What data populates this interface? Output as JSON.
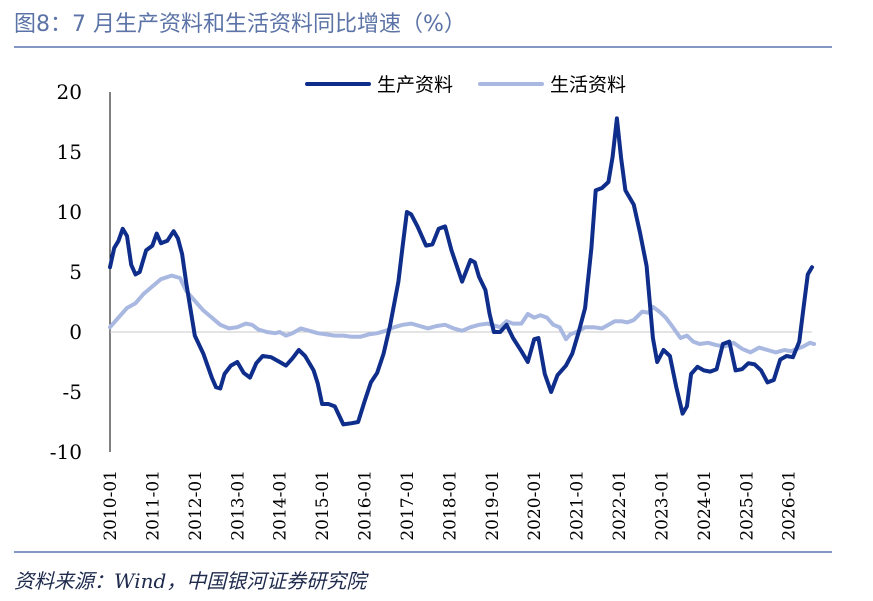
{
  "title": "图8：7 月生产资料和生活资料同比增速（%）",
  "source": "资料来源：Wind，中国银河证券研究院",
  "chart_data": {
    "type": "line",
    "title": "图8：7 月生产资料和生活资料同比增速（%）",
    "xlabel": "",
    "ylabel": "",
    "ylim": [
      -10,
      20
    ],
    "yticks": [
      20,
      15,
      10,
      5,
      0,
      -5,
      -10
    ],
    "xtick_labels": [
      "2010-01",
      "2011-01",
      "2012-01",
      "2013-01",
      "2014-01",
      "2015-01",
      "2016-01",
      "2017-01",
      "2018-01",
      "2019-01",
      "2020-01",
      "2021-01",
      "2022-01",
      "2023-01",
      "2024-01",
      "2025-01",
      "2026-01"
    ],
    "grid": false,
    "legend_position": "top",
    "series": [
      {
        "name": "生产资料",
        "color": "#0f2d8a",
        "points": [
          [
            2010.0,
            5.4
          ],
          [
            2010.1,
            7.0
          ],
          [
            2010.2,
            7.6
          ],
          [
            2010.3,
            8.6
          ],
          [
            2010.4,
            8.0
          ],
          [
            2010.5,
            5.6
          ],
          [
            2010.6,
            4.8
          ],
          [
            2010.7,
            5.0
          ],
          [
            2010.85,
            6.8
          ],
          [
            2011.0,
            7.2
          ],
          [
            2011.1,
            8.2
          ],
          [
            2011.2,
            7.4
          ],
          [
            2011.35,
            7.6
          ],
          [
            2011.5,
            8.4
          ],
          [
            2011.6,
            7.8
          ],
          [
            2011.7,
            6.5
          ],
          [
            2011.8,
            4.0
          ],
          [
            2012.0,
            -0.3
          ],
          [
            2012.2,
            -1.8
          ],
          [
            2012.4,
            -3.8
          ],
          [
            2012.5,
            -4.6
          ],
          [
            2012.6,
            -4.7
          ],
          [
            2012.7,
            -3.5
          ],
          [
            2012.85,
            -2.8
          ],
          [
            2013.0,
            -2.5
          ],
          [
            2013.15,
            -3.4
          ],
          [
            2013.3,
            -3.8
          ],
          [
            2013.45,
            -2.6
          ],
          [
            2013.6,
            -2.0
          ],
          [
            2013.8,
            -2.1
          ],
          [
            2014.0,
            -2.5
          ],
          [
            2014.15,
            -2.8
          ],
          [
            2014.3,
            -2.2
          ],
          [
            2014.45,
            -1.5
          ],
          [
            2014.6,
            -2.0
          ],
          [
            2014.8,
            -3.2
          ],
          [
            2014.9,
            -4.3
          ],
          [
            2015.0,
            -6.0
          ],
          [
            2015.15,
            -6.0
          ],
          [
            2015.3,
            -6.2
          ],
          [
            2015.5,
            -7.7
          ],
          [
            2015.7,
            -7.6
          ],
          [
            2015.85,
            -7.5
          ],
          [
            2016.0,
            -5.8
          ],
          [
            2016.15,
            -4.2
          ],
          [
            2016.3,
            -3.4
          ],
          [
            2016.45,
            -1.8
          ],
          [
            2016.6,
            0.5
          ],
          [
            2016.8,
            4.2
          ],
          [
            2016.9,
            7.2
          ],
          [
            2017.0,
            10.0
          ],
          [
            2017.1,
            9.8
          ],
          [
            2017.25,
            8.8
          ],
          [
            2017.45,
            7.2
          ],
          [
            2017.6,
            7.3
          ],
          [
            2017.75,
            8.6
          ],
          [
            2017.9,
            8.8
          ],
          [
            2018.05,
            6.8
          ],
          [
            2018.3,
            4.2
          ],
          [
            2018.5,
            6.0
          ],
          [
            2018.6,
            5.8
          ],
          [
            2018.7,
            4.6
          ],
          [
            2018.85,
            3.5
          ],
          [
            2018.95,
            1.5
          ],
          [
            2019.05,
            0.0
          ],
          [
            2019.2,
            0.0
          ],
          [
            2019.35,
            0.6
          ],
          [
            2019.5,
            -0.5
          ],
          [
            2019.7,
            -1.6
          ],
          [
            2019.85,
            -2.5
          ],
          [
            2020.0,
            -0.6
          ],
          [
            2020.1,
            -0.5
          ],
          [
            2020.25,
            -3.5
          ],
          [
            2020.4,
            -5.0
          ],
          [
            2020.55,
            -3.6
          ],
          [
            2020.75,
            -2.8
          ],
          [
            2020.9,
            -1.8
          ],
          [
            2021.05,
            0.0
          ],
          [
            2021.2,
            2.0
          ],
          [
            2021.35,
            7.0
          ],
          [
            2021.45,
            11.8
          ],
          [
            2021.6,
            12.0
          ],
          [
            2021.75,
            12.5
          ],
          [
            2021.85,
            14.6
          ],
          [
            2021.95,
            17.8
          ],
          [
            2022.05,
            14.5
          ],
          [
            2022.15,
            11.8
          ],
          [
            2022.35,
            10.6
          ],
          [
            2022.5,
            8.2
          ],
          [
            2022.65,
            5.5
          ],
          [
            2022.8,
            -0.5
          ],
          [
            2022.9,
            -2.5
          ],
          [
            2023.05,
            -1.5
          ],
          [
            2023.2,
            -2.0
          ],
          [
            2023.35,
            -4.6
          ],
          [
            2023.5,
            -6.8
          ],
          [
            2023.6,
            -6.2
          ],
          [
            2023.7,
            -3.5
          ],
          [
            2023.85,
            -2.9
          ],
          [
            2024.0,
            -3.2
          ],
          [
            2024.15,
            -3.3
          ],
          [
            2024.3,
            -3.1
          ],
          [
            2024.45,
            -1.0
          ],
          [
            2024.6,
            -0.8
          ],
          [
            2024.75,
            -3.2
          ],
          [
            2024.9,
            -3.1
          ],
          [
            2025.05,
            -2.6
          ],
          [
            2025.2,
            -2.7
          ],
          [
            2025.35,
            -3.2
          ],
          [
            2025.5,
            -4.2
          ],
          [
            2025.65,
            -4.0
          ],
          [
            2025.8,
            -2.3
          ],
          [
            2025.95,
            -2.0
          ],
          [
            2026.1,
            -2.1
          ],
          [
            2026.25,
            -0.8
          ],
          [
            2026.35,
            2.0
          ],
          [
            2026.45,
            4.8
          ],
          [
            2026.55,
            5.4
          ]
        ]
      },
      {
        "name": "生活资料",
        "color": "#a9b8e0",
        "points": [
          [
            2010.0,
            0.4
          ],
          [
            2010.2,
            1.2
          ],
          [
            2010.4,
            2.0
          ],
          [
            2010.6,
            2.4
          ],
          [
            2010.8,
            3.2
          ],
          [
            2011.0,
            3.8
          ],
          [
            2011.2,
            4.4
          ],
          [
            2011.45,
            4.7
          ],
          [
            2011.65,
            4.5
          ],
          [
            2011.8,
            3.4
          ],
          [
            2012.0,
            2.6
          ],
          [
            2012.2,
            1.8
          ],
          [
            2012.4,
            1.2
          ],
          [
            2012.6,
            0.6
          ],
          [
            2012.8,
            0.3
          ],
          [
            2013.0,
            0.4
          ],
          [
            2013.2,
            0.7
          ],
          [
            2013.35,
            0.6
          ],
          [
            2013.5,
            0.2
          ],
          [
            2013.7,
            0.0
          ],
          [
            2013.9,
            -0.1
          ],
          [
            2014.0,
            0.0
          ],
          [
            2014.15,
            -0.3
          ],
          [
            2014.3,
            -0.1
          ],
          [
            2014.5,
            0.3
          ],
          [
            2014.7,
            0.1
          ],
          [
            2014.9,
            -0.1
          ],
          [
            2015.1,
            -0.2
          ],
          [
            2015.3,
            -0.3
          ],
          [
            2015.5,
            -0.3
          ],
          [
            2015.7,
            -0.4
          ],
          [
            2015.9,
            -0.4
          ],
          [
            2016.1,
            -0.2
          ],
          [
            2016.3,
            -0.1
          ],
          [
            2016.5,
            0.1
          ],
          [
            2016.7,
            0.4
          ],
          [
            2016.9,
            0.6
          ],
          [
            2017.1,
            0.7
          ],
          [
            2017.3,
            0.5
          ],
          [
            2017.5,
            0.3
          ],
          [
            2017.7,
            0.5
          ],
          [
            2017.9,
            0.6
          ],
          [
            2018.1,
            0.3
          ],
          [
            2018.3,
            0.1
          ],
          [
            2018.5,
            0.4
          ],
          [
            2018.7,
            0.6
          ],
          [
            2018.9,
            0.7
          ],
          [
            2019.0,
            0.6
          ],
          [
            2019.2,
            0.4
          ],
          [
            2019.35,
            0.9
          ],
          [
            2019.5,
            0.7
          ],
          [
            2019.7,
            0.7
          ],
          [
            2019.85,
            1.5
          ],
          [
            2020.0,
            1.2
          ],
          [
            2020.15,
            1.4
          ],
          [
            2020.3,
            1.2
          ],
          [
            2020.45,
            0.6
          ],
          [
            2020.6,
            0.4
          ],
          [
            2020.75,
            -0.6
          ],
          [
            2020.85,
            -0.2
          ],
          [
            2021.0,
            0.0
          ],
          [
            2021.2,
            0.4
          ],
          [
            2021.4,
            0.4
          ],
          [
            2021.6,
            0.3
          ],
          [
            2021.8,
            0.7
          ],
          [
            2021.9,
            0.9
          ],
          [
            2022.05,
            0.9
          ],
          [
            2022.2,
            0.8
          ],
          [
            2022.35,
            1.0
          ],
          [
            2022.55,
            1.7
          ],
          [
            2022.7,
            1.6
          ],
          [
            2022.8,
            2.1
          ],
          [
            2022.95,
            1.7
          ],
          [
            2023.1,
            1.2
          ],
          [
            2023.25,
            0.5
          ],
          [
            2023.45,
            -0.5
          ],
          [
            2023.6,
            -0.3
          ],
          [
            2023.75,
            -0.8
          ],
          [
            2023.9,
            -1.0
          ],
          [
            2024.1,
            -0.9
          ],
          [
            2024.3,
            -1.1
          ],
          [
            2024.5,
            -1.2
          ],
          [
            2024.7,
            -0.9
          ],
          [
            2024.9,
            -1.4
          ],
          [
            2025.1,
            -1.7
          ],
          [
            2025.3,
            -1.3
          ],
          [
            2025.5,
            -1.5
          ],
          [
            2025.7,
            -1.7
          ],
          [
            2025.9,
            -1.5
          ],
          [
            2026.05,
            -1.6
          ],
          [
            2026.2,
            -1.4
          ],
          [
            2026.35,
            -1.2
          ],
          [
            2026.5,
            -0.9
          ],
          [
            2026.6,
            -1.0
          ]
        ]
      }
    ]
  }
}
